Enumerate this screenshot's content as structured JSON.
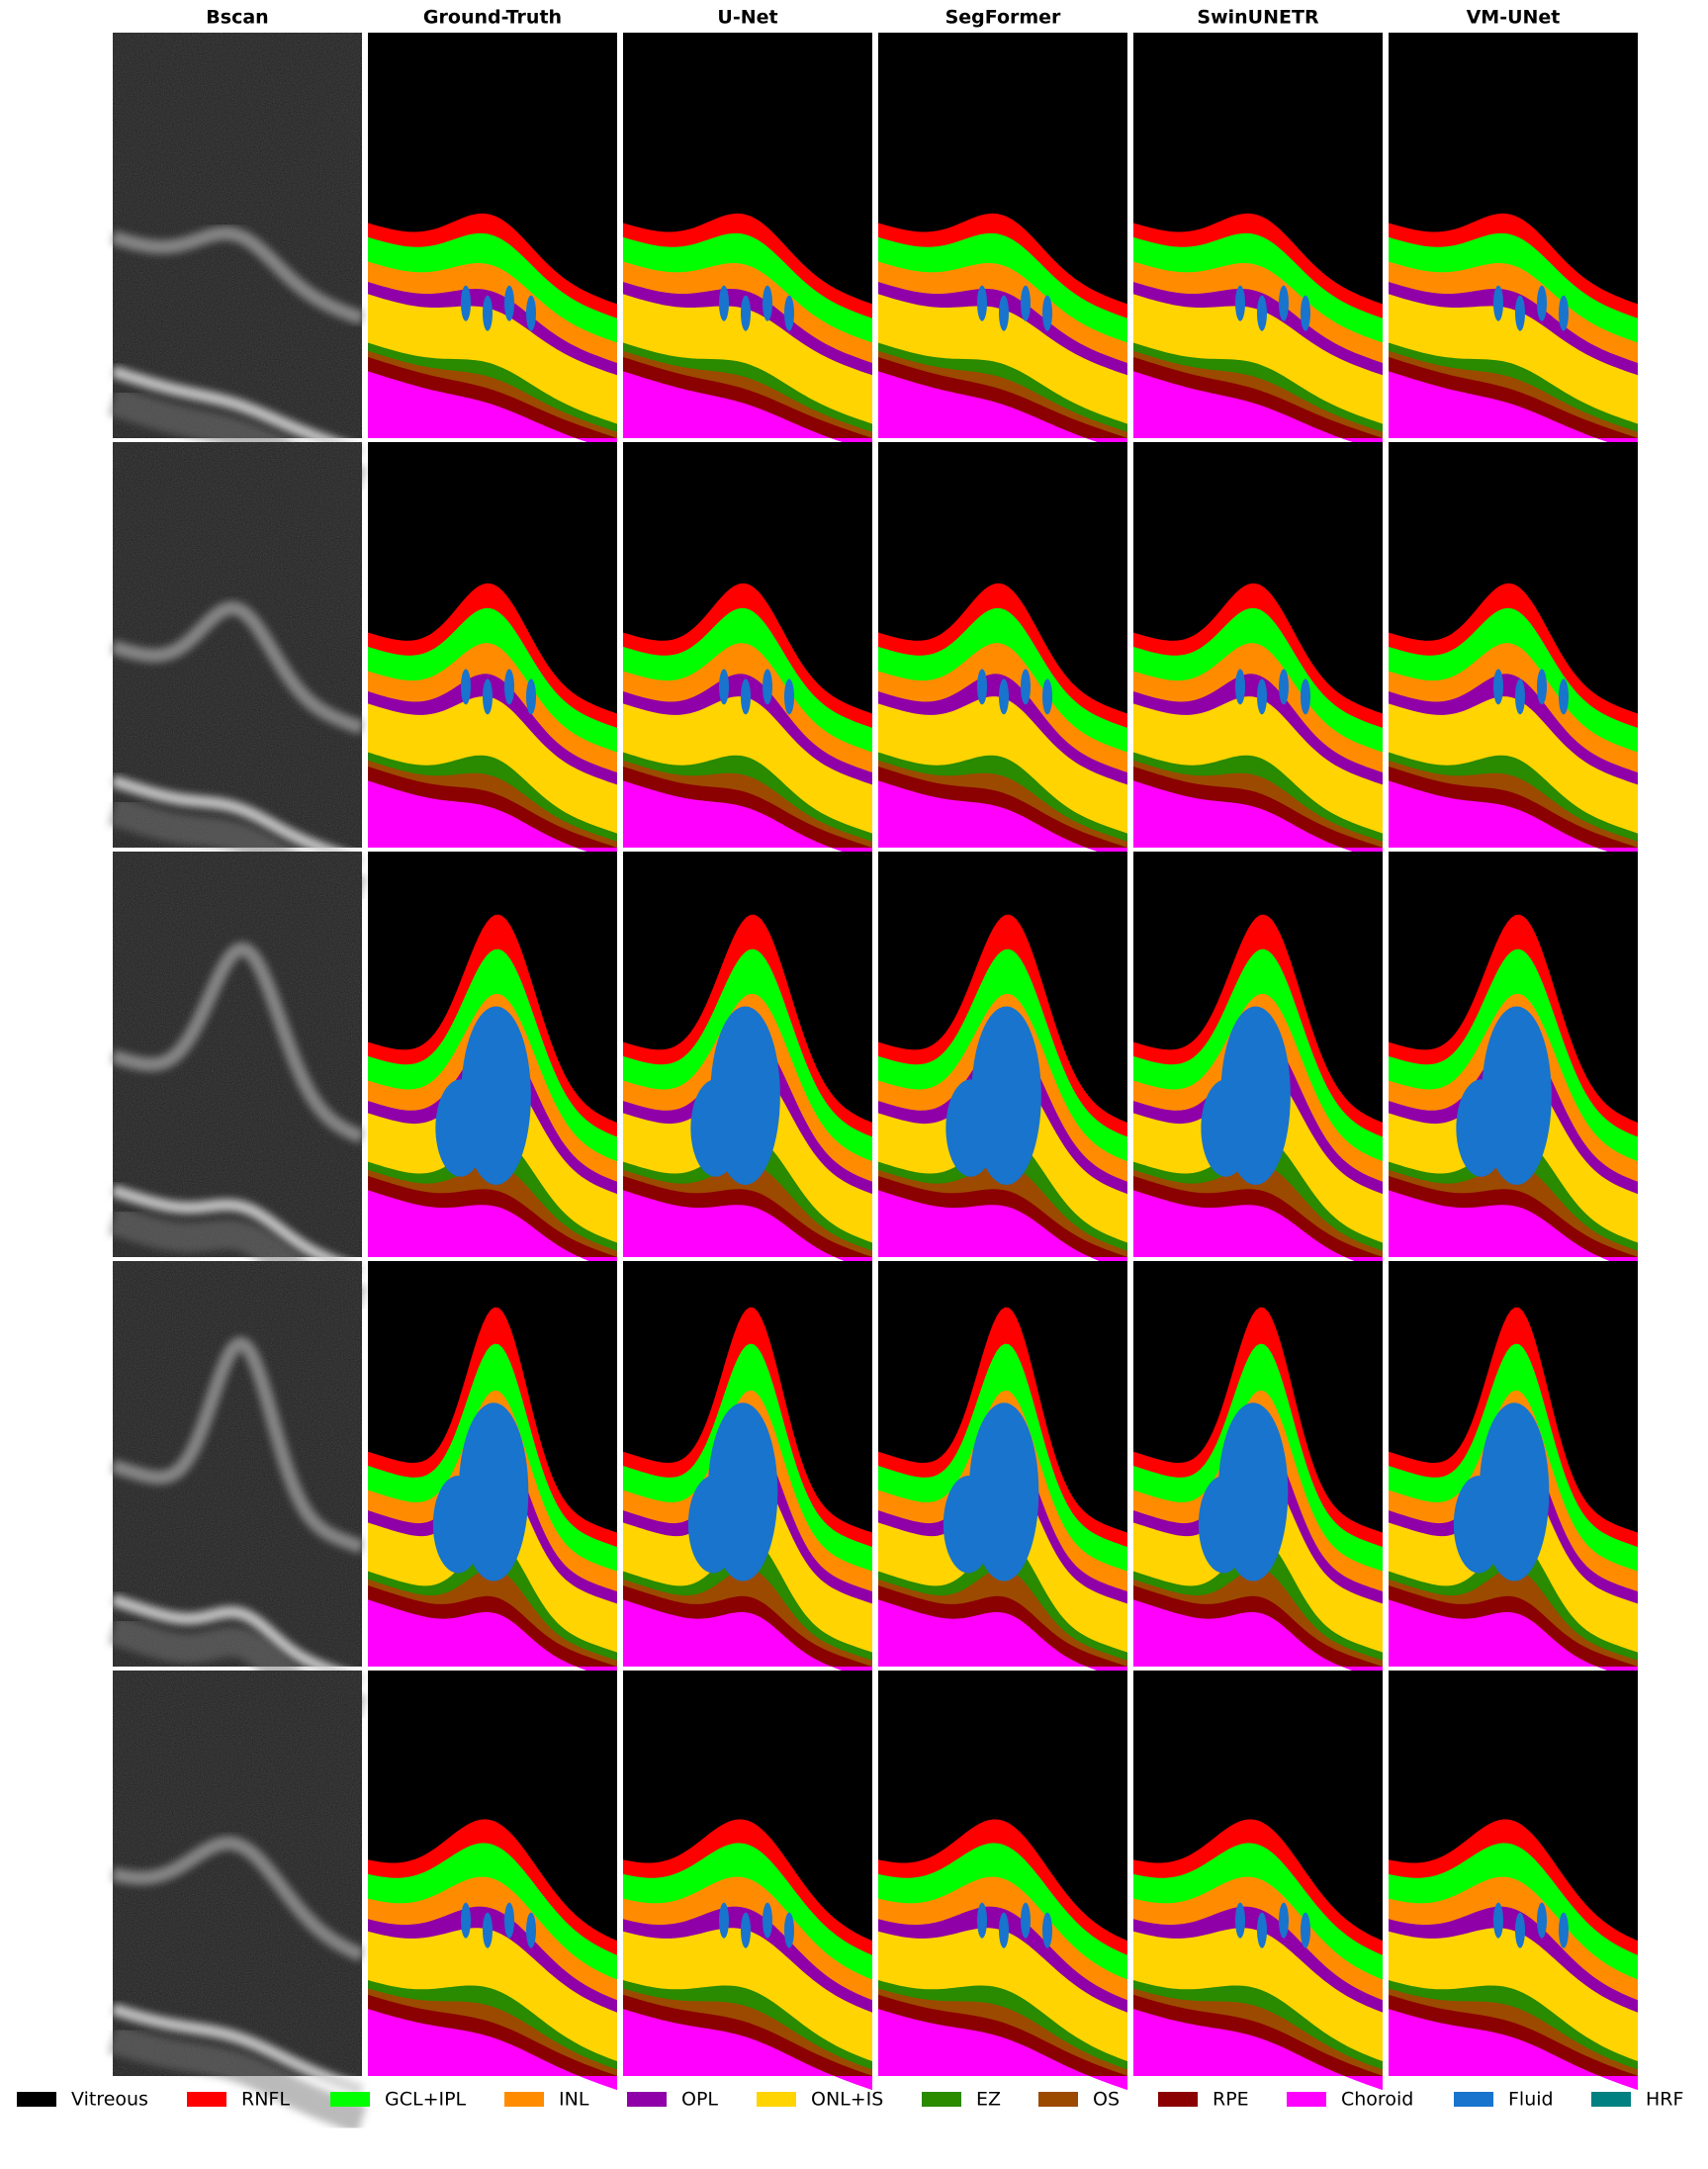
{
  "columns": [
    "Bscan",
    "Ground-Truth",
    "U-Net",
    "SegFormer",
    "SwinUNETR",
    "VM-UNet"
  ],
  "legend": [
    {
      "label": "Vitreous",
      "color": "#000000"
    },
    {
      "label": "RNFL",
      "color": "#ff0000"
    },
    {
      "label": "GCL+IPL",
      "color": "#00ff00"
    },
    {
      "label": "INL",
      "color": "#ff8c00"
    },
    {
      "label": "OPL",
      "color": "#8f00a8"
    },
    {
      "label": "ONL+IS",
      "color": "#ffd400"
    },
    {
      "label": "EZ",
      "color": "#2a8a00"
    },
    {
      "label": "OS",
      "color": "#9c4a00"
    },
    {
      "label": "RPE",
      "color": "#8b0000"
    },
    {
      "label": "Choroid",
      "color": "#ff00ff"
    },
    {
      "label": "Fluid",
      "color": "#1874cd"
    },
    {
      "label": "HRF",
      "color": "#008080"
    }
  ]
}
